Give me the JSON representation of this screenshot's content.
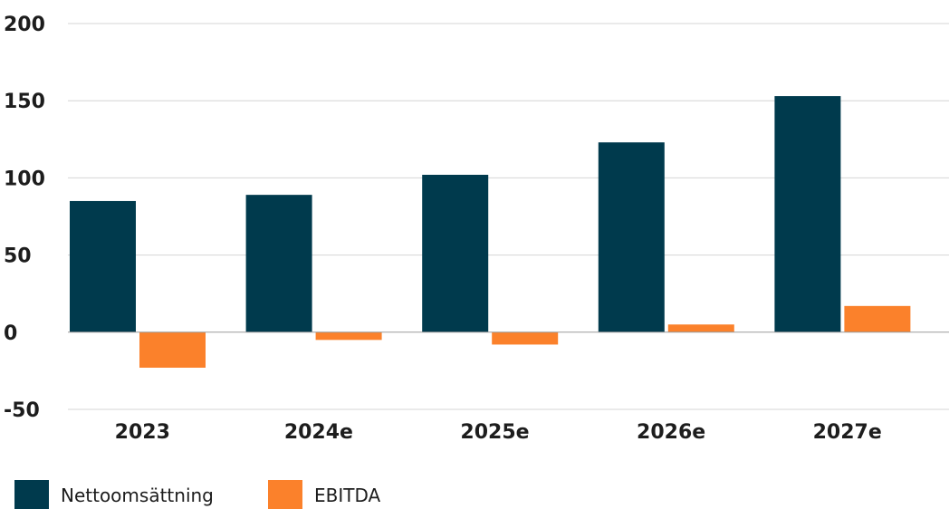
{
  "chart_data": {
    "type": "bar",
    "categories": [
      "2023",
      "2024e",
      "2025e",
      "2026e",
      "2027e"
    ],
    "series": [
      {
        "name": "Nettoomsättning",
        "values": [
          85,
          89,
          102,
          123,
          153
        ],
        "color": "#003a4d"
      },
      {
        "name": "EBITDA",
        "values": [
          -23,
          -5,
          -8,
          5,
          17
        ],
        "color": "#fb812b"
      }
    ],
    "ylim": [
      -50,
      200
    ],
    "yticks": [
      "-50",
      "0",
      "50",
      "100",
      "150",
      "200"
    ],
    "grid": true,
    "legend": "bottom-left"
  }
}
